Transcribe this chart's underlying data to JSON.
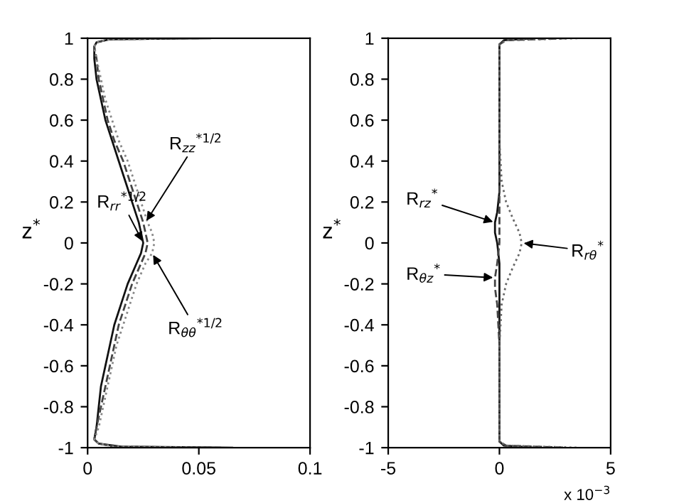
{
  "chart_data": [
    {
      "type": "line",
      "ylabel": "z$^{*}$",
      "xlim": [
        0,
        0.1
      ],
      "xticks": [
        0,
        0.05,
        0.1
      ],
      "ylim": [
        -1,
        1
      ],
      "yticks": [
        -1,
        -0.8,
        -0.6,
        -0.4,
        -0.2,
        0,
        0.2,
        0.4,
        0.6,
        0.8,
        1
      ],
      "series": [
        {
          "color": "#111111",
          "line_style": "solid",
          "x": [
            0.055,
            0.01,
            0.004,
            0.003,
            0.003,
            0.004,
            0.006,
            0.008,
            0.011,
            0.014,
            0.017,
            0.02,
            0.023,
            0.024,
            0.025,
            0.024,
            0.022,
            0.018,
            0.015,
            0.012,
            0.01,
            0.008,
            0.006,
            0.005,
            0.004,
            0.003,
            0.005,
            0.015,
            0.065
          ],
          "values": [
            1,
            0.995,
            0.98,
            0.96,
            0.9,
            0.8,
            0.7,
            0.6,
            0.5,
            0.4,
            0.3,
            0.2,
            0.1,
            0.05,
            0,
            -0.05,
            -0.1,
            -0.2,
            -0.3,
            -0.4,
            -0.5,
            -0.6,
            -0.7,
            -0.8,
            -0.9,
            -0.96,
            -0.98,
            -0.995,
            -1
          ]
        },
        {
          "color": "#444444",
          "line_style": "dashed",
          "x": [
            0.05,
            0.01,
            0.004,
            0.003,
            0.004,
            0.005,
            0.007,
            0.009,
            0.012,
            0.016,
            0.019,
            0.022,
            0.025,
            0.026,
            0.027,
            0.026,
            0.024,
            0.02,
            0.017,
            0.014,
            0.012,
            0.01,
            0.008,
            0.006,
            0.004,
            0.003,
            0.005,
            0.012,
            0.06
          ],
          "values": [
            1,
            0.995,
            0.98,
            0.96,
            0.9,
            0.8,
            0.7,
            0.6,
            0.5,
            0.4,
            0.3,
            0.2,
            0.1,
            0.05,
            0,
            -0.05,
            -0.1,
            -0.2,
            -0.3,
            -0.4,
            -0.5,
            -0.6,
            -0.7,
            -0.8,
            -0.9,
            -0.96,
            -0.98,
            -0.995,
            -1
          ]
        },
        {
          "color": "#888888",
          "line_style": "dotted",
          "x": [
            0.045,
            0.01,
            0.004,
            0.003,
            0.004,
            0.006,
            0.008,
            0.011,
            0.014,
            0.018,
            0.021,
            0.024,
            0.027,
            0.029,
            0.03,
            0.029,
            0.026,
            0.022,
            0.019,
            0.016,
            0.013,
            0.011,
            0.009,
            0.007,
            0.005,
            0.003,
            0.005,
            0.012,
            0.055
          ],
          "values": [
            1,
            0.995,
            0.98,
            0.96,
            0.9,
            0.8,
            0.7,
            0.6,
            0.5,
            0.4,
            0.3,
            0.2,
            0.1,
            0.05,
            0,
            -0.05,
            -0.1,
            -0.2,
            -0.3,
            -0.4,
            -0.5,
            -0.6,
            -0.7,
            -0.8,
            -0.9,
            -0.96,
            -0.98,
            -0.995,
            -1
          ]
        }
      ],
      "annotations": [
        {
          "text": "R$_{zz}$$^{*1/2}$",
          "x": 0.026,
          "y": 0.1
        },
        {
          "text": "R$_{rr}$$^{*1/2}$",
          "x": 0.025,
          "y": 0
        },
        {
          "text": "R$_{θθ}$$^{*1/2}$",
          "x": 0.029,
          "y": -0.05
        }
      ]
    },
    {
      "type": "line",
      "ylabel": "z$^{*}$",
      "xlim": [
        -5,
        5
      ],
      "xticks": [
        {
          "value": -5,
          "label": "-5"
        },
        0,
        5
      ],
      "ylim": [
        -1,
        1
      ],
      "yticks": [
        -1,
        -0.8,
        -0.6,
        -0.4,
        -0.2,
        0,
        0.2,
        0.4,
        0.6,
        0.8,
        1
      ],
      "series": [
        {
          "color": "#111111",
          "line_style": "solid",
          "x": [
            1.5,
            0.2,
            0,
            0,
            0,
            0,
            0,
            -0.1,
            -0.2,
            -0.2,
            -0.1,
            0,
            0,
            0,
            0,
            0,
            0.2,
            1.5
          ],
          "values": [
            1,
            0.99,
            0.97,
            0.8,
            0.6,
            0.4,
            0.25,
            0.15,
            0.1,
            0.05,
            0,
            -0.1,
            -0.3,
            -0.5,
            -0.8,
            -0.97,
            -0.99,
            -1
          ]
        },
        {
          "color": "#444444",
          "line_style": "dashed",
          "x": [
            3,
            0.3,
            0,
            0,
            0,
            0,
            0,
            0,
            -0.1,
            -0.2,
            -0.2,
            -0.1,
            0,
            0,
            0,
            0.3,
            3
          ],
          "values": [
            1,
            0.99,
            0.97,
            0.8,
            0.6,
            0.4,
            0.2,
            0,
            -0.1,
            -0.17,
            -0.22,
            -0.3,
            -0.5,
            -0.8,
            -0.97,
            -0.99,
            -1
          ]
        },
        {
          "color": "#666666",
          "line_style": "dotted",
          "x": [
            3.5,
            0.3,
            0,
            0,
            0,
            0.1,
            0.3,
            0.6,
            0.9,
            1,
            0.9,
            0.6,
            0.3,
            0.1,
            0,
            0,
            0,
            0.3,
            3.5
          ],
          "values": [
            1,
            0.99,
            0.97,
            0.8,
            0.5,
            0.3,
            0.2,
            0.12,
            0.05,
            0,
            -0.05,
            -0.12,
            -0.2,
            -0.3,
            -0.5,
            -0.8,
            -0.97,
            -0.99,
            -1
          ]
        }
      ],
      "annotations": [
        {
          "text": "R$_{rz}$$^{*}$",
          "x": -0.2,
          "y": 0.1
        },
        {
          "text": "R$_{θz}$$^{*}$",
          "x": -0.2,
          "y": -0.17
        },
        {
          "text": "R$_{rθ}$$^{*}$",
          "x": 1,
          "y": 0
        },
        "x 10$^{−3}$"
      ]
    }
  ]
}
